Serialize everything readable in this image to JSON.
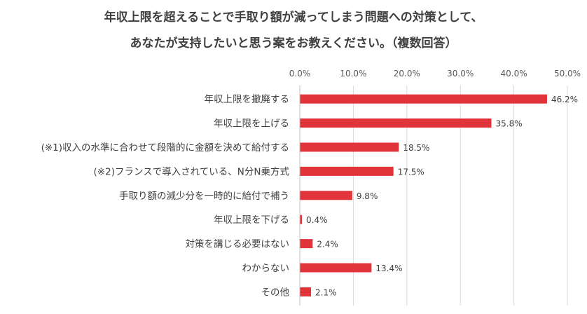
{
  "chart_data": {
    "type": "bar",
    "orientation": "horizontal",
    "title_lines": [
      "年収上限を超えることで手取り額が減ってしまう問題への対策として、",
      "あなたが支持したいと思う案をお教えください。（複数回答）"
    ],
    "categories": [
      "年収上限を撤廃する",
      "年収上限を上げる",
      "(※1)収入の水準に合わせて段階的に金額を決めて給付する",
      "(※2)フランスで導入されている、N分N乗方式",
      "手取り額の減少分を一時的に給付で補う",
      "年収上限を下げる",
      "対策を講じる必要はない",
      "わからない",
      "その他"
    ],
    "values": [
      46.2,
      35.8,
      18.5,
      17.5,
      9.8,
      0.4,
      2.4,
      13.4,
      2.1
    ],
    "value_labels": [
      "46.2%",
      "35.8%",
      "18.5%",
      "17.5%",
      "9.8%",
      "0.4%",
      "2.4%",
      "13.4%",
      "2.1%"
    ],
    "xlim": [
      0,
      50
    ],
    "x_ticks": [
      "0.0%",
      "10.0%",
      "20.0%",
      "30.0%",
      "40.0%",
      "50.0%"
    ],
    "x_axis_position": "top",
    "grid": true,
    "bar_color": "#e0343a",
    "grid_color": "#d9d9d9"
  }
}
